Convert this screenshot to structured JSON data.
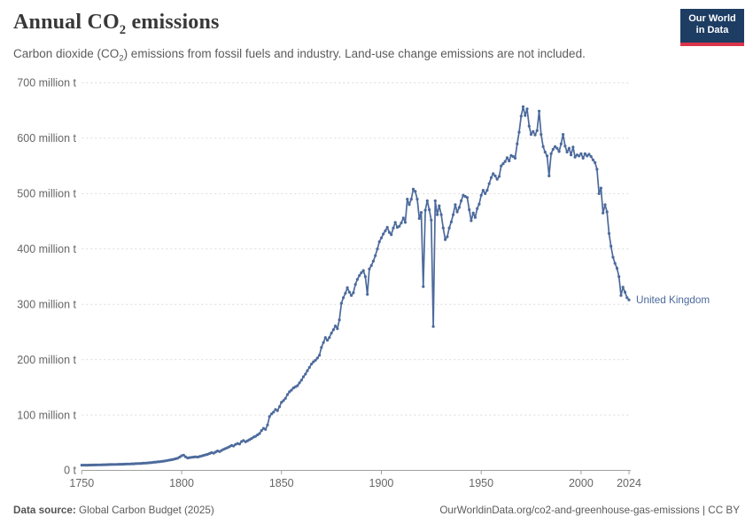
{
  "header": {
    "title_pre": "Annual CO",
    "title_sub": "2",
    "title_post": " emissions",
    "subtitle_pre": "Carbon dioxide (CO",
    "subtitle_sub": "2",
    "subtitle_post": ") emissions from fossil fuels and industry. Land-use change emissions are not included.",
    "logo": {
      "line1": "Our World",
      "line2": "in Data",
      "bg_color": "#1d3d63",
      "accent_color": "#dc354b"
    }
  },
  "footer": {
    "source_label": "Data source:",
    "source_text": " Global Carbon Budget (2025)",
    "credit_text": "OurWorldinData.org/co2-and-greenhouse-gas-emissions | CC BY"
  },
  "chart_data": {
    "type": "line",
    "title": "Annual CO₂ emissions",
    "xlabel": "",
    "ylabel": "",
    "unit": "million t",
    "grid": "horizontal-dashed",
    "legend_position": "end-of-line-label",
    "x_range": [
      1750,
      2024
    ],
    "y_range": [
      0,
      700
    ],
    "line_color": "#4C6A9C",
    "label_color": "#666666",
    "grid_color": "#dcdcdc",
    "axis_color": "#a0a0a0",
    "x_ticks": [
      {
        "value": 1750,
        "label": "1750"
      },
      {
        "value": 1800,
        "label": "1800"
      },
      {
        "value": 1850,
        "label": "1850"
      },
      {
        "value": 1900,
        "label": "1900"
      },
      {
        "value": 1950,
        "label": "1950"
      },
      {
        "value": 2000,
        "label": "2000"
      },
      {
        "value": 2024,
        "label": "2024"
      }
    ],
    "y_ticks": [
      {
        "value": 0,
        "label": "0 t"
      },
      {
        "value": 100,
        "label": "100 million t"
      },
      {
        "value": 200,
        "label": "200 million t"
      },
      {
        "value": 300,
        "label": "300 million t"
      },
      {
        "value": 400,
        "label": "400 million t"
      },
      {
        "value": 500,
        "label": "500 million t"
      },
      {
        "value": 600,
        "label": "600 million t"
      },
      {
        "value": 700,
        "label": "700 million t"
      }
    ],
    "series": [
      {
        "name": "United Kingdom",
        "color": "#4C6A9C",
        "year_start": 1750,
        "year_step": 1,
        "values": [
          9.4,
          9.4,
          9.5,
          9.5,
          9.6,
          9.6,
          9.7,
          9.8,
          9.9,
          10,
          10.1,
          10.2,
          10.3,
          10.4,
          10.5,
          10.6,
          10.7,
          10.8,
          10.9,
          11,
          11.1,
          11.2,
          11.3,
          11.5,
          11.6,
          11.8,
          11.9,
          12.1,
          12.3,
          12.5,
          12.7,
          12.9,
          13.2,
          13.5,
          13.8,
          14.1,
          14.5,
          14.9,
          15.3,
          15.7,
          16.2,
          16.7,
          17.3,
          17.9,
          18.6,
          19.3,
          20.1,
          21,
          22,
          24,
          26.5,
          27.5,
          24.5,
          22.5,
          23,
          23.5,
          24,
          24.5,
          24,
          25,
          26,
          27,
          28,
          29,
          30.5,
          32,
          31,
          33,
          35,
          34,
          36,
          38,
          39.5,
          41,
          43,
          45,
          44,
          47,
          48.5,
          47.5,
          52,
          54,
          51.5,
          53.5,
          55.5,
          57.5,
          60,
          61.5,
          64,
          66.5,
          72,
          76,
          74,
          82,
          97,
          102,
          105,
          110,
          108,
          115,
          123,
          126,
          130,
          137,
          142,
          145,
          149,
          151,
          153,
          158,
          163,
          169,
          174,
          180,
          186,
          192,
          196,
          199,
          203,
          208,
          222,
          231,
          240,
          235,
          240,
          248,
          254,
          261,
          256,
          272,
          302,
          312,
          320,
          330,
          322,
          316,
          321,
          336,
          345,
          352,
          357,
          361,
          350,
          318,
          364,
          370,
          378,
          388,
          400,
          413,
          420,
          427,
          433,
          439,
          430,
          426,
          438,
          448,
          439,
          441,
          447,
          456,
          448,
          490,
          480,
          490,
          508,
          504,
          490,
          455,
          466,
          332,
          470,
          487,
          471,
          452,
          260,
          487,
          462,
          478,
          462,
          438,
          417,
          422,
          438,
          449,
          462,
          480,
          467,
          475,
          487,
          497,
          495,
          493,
          471,
          451,
          465,
          457,
          473,
          481,
          497,
          506,
          500,
          506,
          518,
          529,
          536,
          532,
          526,
          531,
          550,
          554,
          558,
          565,
          559,
          569,
          567,
          564,
          590,
          611,
          640,
          657,
          641,
          653,
          622,
          607,
          612,
          606,
          614,
          649,
          607,
          585,
          575,
          568,
          532,
          572,
          580,
          585,
          582,
          576,
          590,
          607,
          586,
          575,
          582,
          570,
          584,
          566,
          570,
          568,
          572,
          564,
          572,
          568,
          571,
          567,
          561,
          556,
          544,
          500,
          510,
          465,
          480,
          467,
          428,
          405,
          385,
          374,
          365,
          350,
          316,
          331,
          322,
          312,
          308
        ]
      }
    ]
  }
}
